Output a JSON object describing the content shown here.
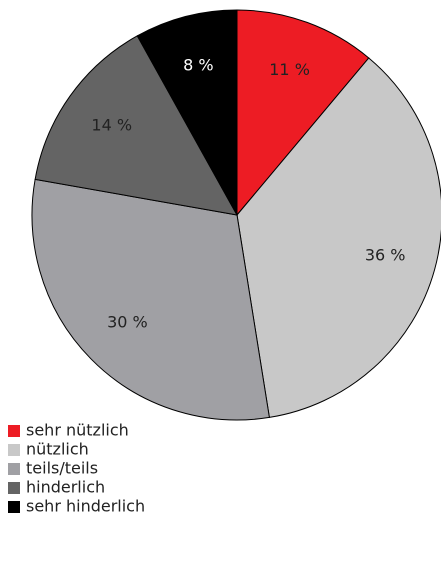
{
  "chart_data": {
    "type": "pie",
    "categories": [
      "sehr nützlich",
      "nützlich",
      "teils/teils",
      "hinderlich",
      "sehr hinderlich"
    ],
    "values": [
      11,
      36,
      30,
      14,
      8
    ],
    "value_labels": [
      "11 %",
      "36 %",
      "30 %",
      "14 %",
      "8 %"
    ],
    "colors": [
      "#ed1c24",
      "#c8c8c8",
      "#a0a0a4",
      "#646464",
      "#000000"
    ],
    "label_colors": [
      "#222222",
      "#222222",
      "#222222",
      "#222222",
      "#ffffff"
    ]
  }
}
